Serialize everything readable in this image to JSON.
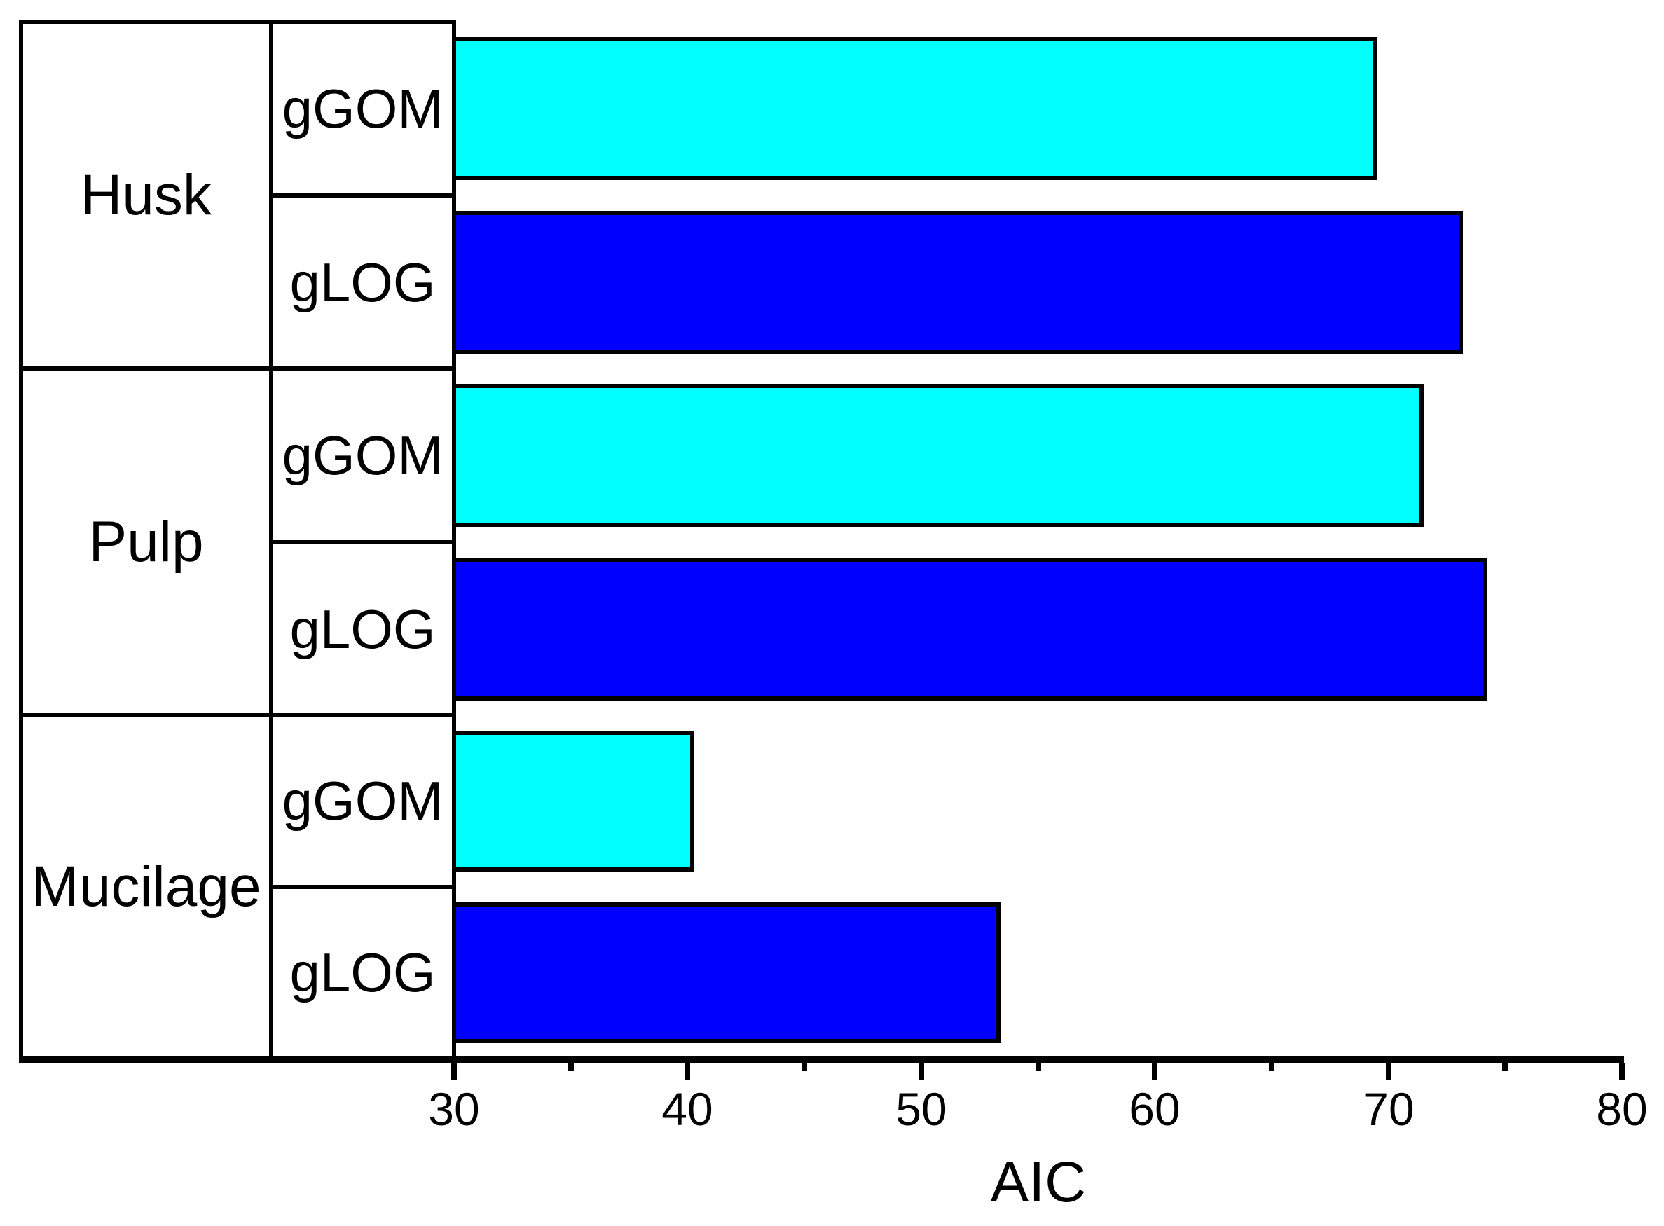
{
  "chart_data": {
    "type": "bar",
    "orientation": "horizontal",
    "title": "",
    "xlabel": "AIC",
    "ylabel": "",
    "xlim": [
      30,
      80
    ],
    "x_major_ticks": [
      30,
      40,
      50,
      60,
      70,
      80
    ],
    "x_minor_ticks": [
      35,
      45,
      55,
      65,
      75
    ],
    "grid": false,
    "legend_position": "none",
    "bar_edge_color": "#000000",
    "categories": [
      "Husk",
      "Pulp",
      "Mucilage"
    ],
    "series": [
      {
        "name": "gGOM",
        "color": "#00ffff",
        "values": [
          69.5,
          71.5,
          40.3
        ]
      },
      {
        "name": "gLOG",
        "color": "#0000ff",
        "values": [
          73.2,
          74.2,
          53.4
        ]
      }
    ],
    "groups": [
      {
        "category": "Husk",
        "bars": [
          {
            "model": "gGOM",
            "value": 69.5,
            "color": "#00ffff"
          },
          {
            "model": "gLOG",
            "value": 73.2,
            "color": "#0000ff"
          }
        ]
      },
      {
        "category": "Pulp",
        "bars": [
          {
            "model": "gGOM",
            "value": 71.5,
            "color": "#00ffff"
          },
          {
            "model": "gLOG",
            "value": 74.2,
            "color": "#0000ff"
          }
        ]
      },
      {
        "category": "Mucilage",
        "bars": [
          {
            "model": "gGOM",
            "value": 40.3,
            "color": "#00ffff"
          },
          {
            "model": "gLOG",
            "value": 53.4,
            "color": "#0000ff"
          }
        ]
      }
    ]
  },
  "colors": {
    "background": "#ffffff",
    "line": "#000000",
    "text": "#000000",
    "cyan_bar": "#00ffff",
    "blue_bar": "#0000ff"
  }
}
